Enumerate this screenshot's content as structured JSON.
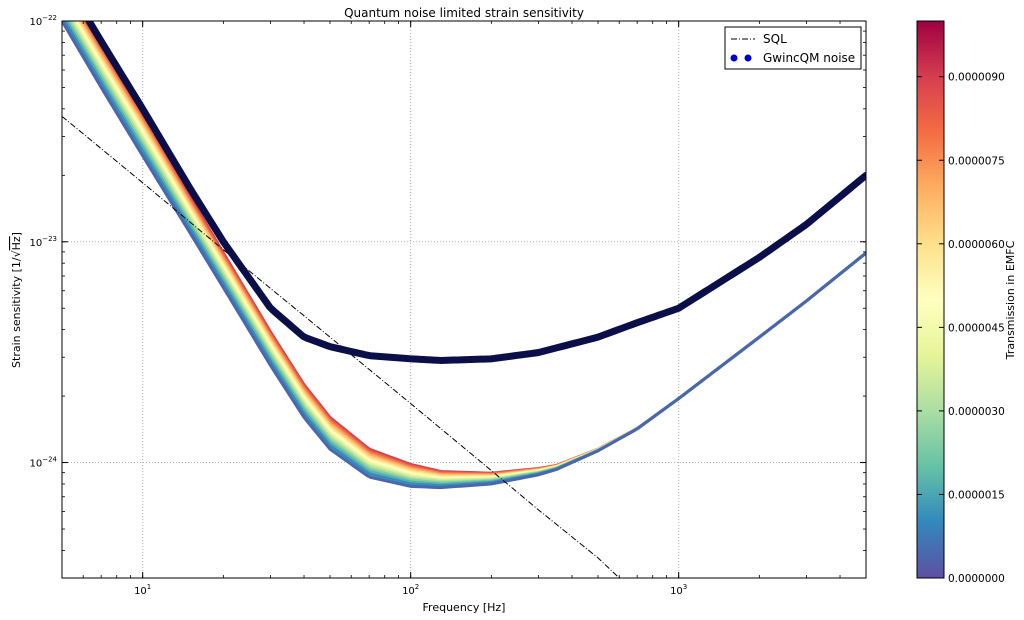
{
  "chart_data": {
    "type": "line",
    "title": "Quantum noise limited strain sensitivity",
    "xlabel": "Frequency [Hz]",
    "ylabel_prefix": "Strain sensitivity [1/",
    "ylabel_sqrt": "Hz",
    "ylabel_suffix": "]",
    "xscale": "log",
    "yscale": "log",
    "xlim": [
      5,
      5000
    ],
    "ylim": [
      3e-25,
      1e-22
    ],
    "grid": true,
    "x_ticks": [
      {
        "value": 10,
        "base": "10",
        "exp": "1"
      },
      {
        "value": 100,
        "base": "10",
        "exp": "2"
      },
      {
        "value": 1000,
        "base": "10",
        "exp": "3"
      }
    ],
    "y_ticks": [
      {
        "value": 1e-24,
        "base": "10",
        "exp": "−24"
      },
      {
        "value": 1e-23,
        "base": "10",
        "exp": "−23"
      },
      {
        "value": 1e-22,
        "base": "10",
        "exp": "−22"
      }
    ],
    "legend": {
      "placement": "top-right",
      "entries": [
        {
          "label": "SQL",
          "style": "dashdot",
          "color": "#000000"
        },
        {
          "label": "GwincQM noise",
          "style": "dots",
          "color": "#0000cc"
        }
      ]
    },
    "series": [
      {
        "label": "SQL",
        "style": "dashdot",
        "color": "#000000",
        "x": [
          5,
          10,
          20,
          50,
          100,
          200,
          300,
          500,
          600
        ],
        "y": [
          3.7e-23,
          1.85e-23,
          9.2e-24,
          3.7e-24,
          1.85e-24,
          9.2e-25,
          6.1e-25,
          3.7e-25,
          3e-25
        ]
      },
      {
        "label": "GwincQM noise",
        "style": "thick",
        "color": "#0a0f4a",
        "x": [
          5,
          7,
          10,
          15,
          20,
          30,
          40,
          50,
          70,
          100,
          130,
          200,
          300,
          500,
          700,
          1000,
          2000,
          3000,
          5000
        ],
        "y": [
          1.6e-22,
          8.1e-23,
          4e-23,
          1.75e-23,
          1e-23,
          5e-24,
          3.7e-24,
          3.35e-24,
          3.05e-24,
          2.95e-24,
          2.9e-24,
          2.95e-24,
          3.15e-24,
          3.7e-24,
          4.3e-24,
          5e-24,
          8.5e-24,
          1.2e-23,
          2e-23
        ]
      }
    ],
    "transmission_family": {
      "curve_count": 14,
      "parameter_range": [
        0,
        1e-05
      ],
      "colormap": "Spectral_r",
      "low_curve": {
        "x": [
          5,
          7,
          10,
          15,
          20,
          30,
          40,
          50,
          70,
          100,
          130,
          200,
          300,
          350,
          500,
          700,
          1000,
          2000,
          3000,
          5000
        ],
        "y": [
          1e-22,
          5e-23,
          2.45e-23,
          1.1e-23,
          6.2e-24,
          2.75e-24,
          1.6e-24,
          1.15e-24,
          8.6e-25,
          7.8e-25,
          7.7e-25,
          8e-25,
          8.8e-25,
          9.3e-25,
          1.13e-24,
          1.42e-24,
          1.95e-24,
          3.7e-24,
          5.4e-24,
          8.9e-24
        ]
      },
      "high_curve": {
        "x": [
          5,
          7,
          10,
          15,
          20,
          30,
          40,
          50,
          70,
          100,
          130,
          200,
          300,
          350,
          500,
          700,
          1000,
          2000,
          3000,
          5000
        ],
        "y": [
          1.5e-22,
          7.6e-23,
          3.75e-23,
          1.6e-23,
          8.9e-24,
          3.9e-24,
          2.25e-24,
          1.6e-24,
          1.15e-24,
          9.8e-25,
          9.1e-25,
          8.95e-25,
          9.4e-25,
          9.7e-25,
          1.15e-24,
          1.43e-24,
          1.95e-24,
          3.7e-24,
          5.4e-24,
          8.9e-24
        ]
      }
    },
    "colorbar": {
      "label": "Transmission in EMFC",
      "placement": "right",
      "range": [
        0,
        1e-05
      ],
      "ticks": [
        {
          "value": 0.0,
          "label": "0.0000000"
        },
        {
          "value": 1.5e-06,
          "label": "0.0000015"
        },
        {
          "value": 3e-06,
          "label": "0.0000030"
        },
        {
          "value": 4.5e-06,
          "label": "0.0000045"
        },
        {
          "value": 6e-06,
          "label": "0.0000060"
        },
        {
          "value": 7.5e-06,
          "label": "0.0000075"
        },
        {
          "value": 9e-06,
          "label": "0.0000090"
        }
      ],
      "colors": [
        "#5e4fa2",
        "#3288bd",
        "#66c2a5",
        "#abdda4",
        "#e6f598",
        "#ffffbf",
        "#fee08b",
        "#fdae61",
        "#f46d43",
        "#d53e4f",
        "#9e0142"
      ]
    }
  }
}
